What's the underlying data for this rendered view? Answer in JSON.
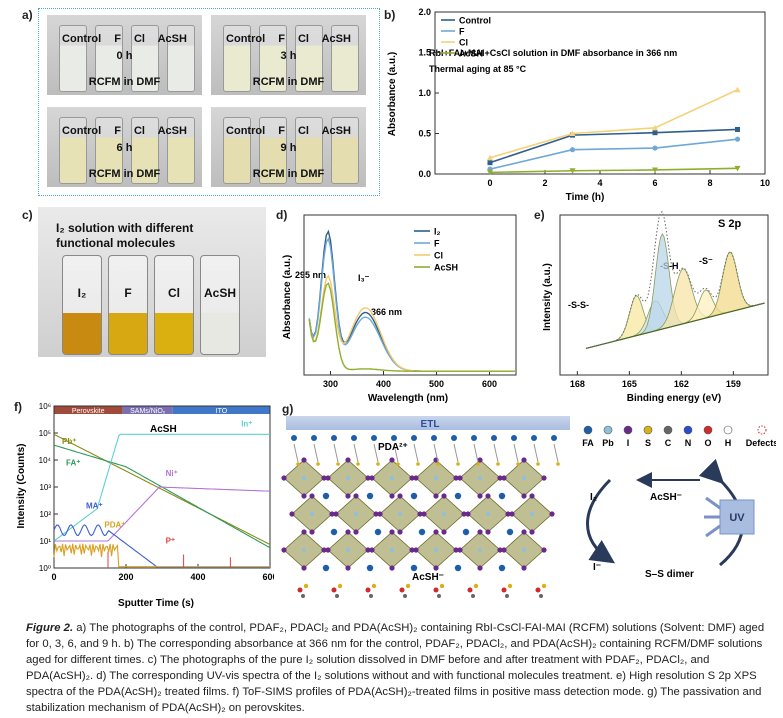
{
  "panel_labels": {
    "a": "a)",
    "b": "b)",
    "c": "c)",
    "d": "d)",
    "e": "e)",
    "f": "f)",
    "g": "g)"
  },
  "panel_a": {
    "vial_labels": "Control  F  Cl  AcSH",
    "times": [
      "0 h",
      "3 h",
      "6 h",
      "9 h"
    ],
    "solution_label": "RCFM in DMF",
    "tints": [
      "#e9ece6",
      "#e9ead0",
      "#e6e2b6",
      "#e3ddb0"
    ]
  },
  "panel_c": {
    "title_line1": "I₂ solution with different",
    "title_line2": "functional molecules",
    "vials": [
      "I₂",
      "F",
      "Cl",
      "AcSH"
    ],
    "colors": [
      "#c88a10",
      "#d7a812",
      "#d9b010",
      "#e8e8e2"
    ]
  },
  "chart_data": [
    {
      "type": "line",
      "panel": "b",
      "annotation1": "RbI+FAI+MAI+CsCl solution in DMF absorbance in 366 nm",
      "annotation2": "Thermal aging at 85 °C",
      "xlabel": "Time (h)",
      "ylabel": "Absorbance (a.u.)",
      "xlim": [
        -2,
        10
      ],
      "ylim": [
        0,
        2.0
      ],
      "xticks": [
        0,
        2,
        4,
        6,
        8,
        10
      ],
      "yticks": [
        0.0,
        0.5,
        1.0,
        1.5,
        2.0
      ],
      "x": [
        0,
        3,
        6,
        9
      ],
      "legend": "top-left",
      "series": [
        {
          "name": "Control",
          "color": "#2f5f8a",
          "marker": "square",
          "values": [
            0.14,
            0.48,
            0.51,
            0.55
          ]
        },
        {
          "name": "F",
          "color": "#6fa8d6",
          "marker": "circle",
          "values": [
            0.06,
            0.3,
            0.32,
            0.43
          ]
        },
        {
          "name": "Cl",
          "color": "#f3d27a",
          "marker": "triangle",
          "values": [
            0.2,
            0.5,
            0.57,
            1.04
          ]
        },
        {
          "name": "AcSH",
          "color": "#8fae2e",
          "marker": "tri-down",
          "values": [
            0.02,
            0.04,
            0.05,
            0.07
          ]
        }
      ]
    },
    {
      "type": "line",
      "panel": "d",
      "xlabel": "Wavelength (nm)",
      "ylabel": "Absorbance (a.u.)",
      "xlim": [
        250,
        650
      ],
      "xticks": [
        300,
        400,
        500,
        600
      ],
      "legend": "top-right",
      "annotations": [
        "295 nm",
        "I₃⁻",
        "366 nm"
      ],
      "series": [
        {
          "name": "I₂",
          "color": "#2f5f8a",
          "peaks": [
            [
              295,
              2.9
            ],
            [
              366,
              1.25
            ]
          ]
        },
        {
          "name": "F",
          "color": "#6fa8d6",
          "peaks": [
            [
              295,
              2.75
            ],
            [
              366,
              1.15
            ]
          ]
        },
        {
          "name": "Cl",
          "color": "#f3c96a",
          "peaks": [
            [
              295,
              1.95
            ],
            [
              366,
              1.35
            ]
          ]
        },
        {
          "name": "AcSH",
          "color": "#8fae2e",
          "peaks": [
            [
              295,
              1.85
            ],
            [
              366,
              0.05
            ]
          ]
        }
      ]
    },
    {
      "type": "line",
      "panel": "e",
      "title": "S 2p",
      "xlabel": "Binding energy (eV)",
      "ylabel": "Intensity (a.u.)",
      "xlim": [
        169,
        157
      ],
      "xticks": [
        168,
        165,
        162,
        159
      ],
      "annotations": [
        "-S-S-",
        "-S-H",
        "-S⁻"
      ]
    },
    {
      "type": "line",
      "panel": "f",
      "xlabel": "Sputter Time (s)",
      "ylabel": "Intensity (Counts)",
      "xlim": [
        0,
        600
      ],
      "xticks": [
        0,
        200,
        400,
        600
      ],
      "ylim_log": [
        0,
        6
      ],
      "yticks_labels": [
        "10⁰",
        "10¹",
        "10²",
        "10³",
        "10⁴",
        "10⁵",
        "10⁶"
      ],
      "regions": [
        {
          "name": "Perovskite",
          "from": 0,
          "to": 190,
          "color": "#a04a3a"
        },
        {
          "name": "SAMs/NiOₓ",
          "from": 190,
          "to": 330,
          "color": "#7a6fb0"
        },
        {
          "name": "ITO",
          "from": 330,
          "to": 600,
          "color": "#3f78c8"
        }
      ],
      "header": "AcSH",
      "series": [
        {
          "name": "Pb⁺",
          "color": "#8b8b1a"
        },
        {
          "name": "FA⁺",
          "color": "#2e9a5a"
        },
        {
          "name": "In⁺",
          "color": "#5fd0d0"
        },
        {
          "name": "Ni⁺",
          "color": "#b574d6"
        },
        {
          "name": "MA⁺",
          "color": "#3d5ed0"
        },
        {
          "name": "PDA⁺",
          "color": "#d9a020"
        },
        {
          "name": "P⁺",
          "color": "#e04040"
        }
      ]
    }
  ],
  "panel_g": {
    "etl": "ETL",
    "pda": "PDA²⁺",
    "acsh_bottom": "AcSH⁻",
    "legend_items": [
      "FA",
      "Pb",
      "I",
      "S",
      "C",
      "N",
      "O",
      "H",
      "Defects"
    ],
    "legend_colors": [
      "#1c5fa8",
      "#8fc0d8",
      "#6a2a8a",
      "#d8b018",
      "#666666",
      "#2a4bd0",
      "#d02a2a",
      "#ffffff",
      "#ffffff"
    ],
    "cycle": {
      "i2": "I₂",
      "acsh": "AcSH⁻",
      "iminus": "I⁻",
      "ss": "S–S dimer",
      "uv": "UV"
    }
  },
  "caption": {
    "figure_label": "Figure 2.",
    "text": " a) The photographs of the control, PDAF₂, PDACl₂ and PDA(AcSH)₂ containing RbI-CsCl-FAI-MAI (RCFM) solutions (Solvent: DMF) aged for 0, 3, 6, and 9 h. b) The corresponding absorbance at 366 nm for the control, PDAF₂, PDACl₂, and PDA(AcSH)₂ containing RCFM/DMF solutions aged for different times. c) The photographs of the pure I₂ solution dissolved in DMF before and after treatment with PDAF₂, PDACl₂, and PDA(AcSH)₂. d) The corresponding UV-vis spectra of the I₂ solutions without and with functional molecules treatment. e) High resolution S 2p XPS spectra of the PDA(AcSH)₂ treated films. f) ToF-SIMS profiles of PDA(AcSH)₂-treated films in positive mass detection mode. g) The passivation and stabilization mechanism of PDA(AcSH)₂ on perovskites."
  }
}
